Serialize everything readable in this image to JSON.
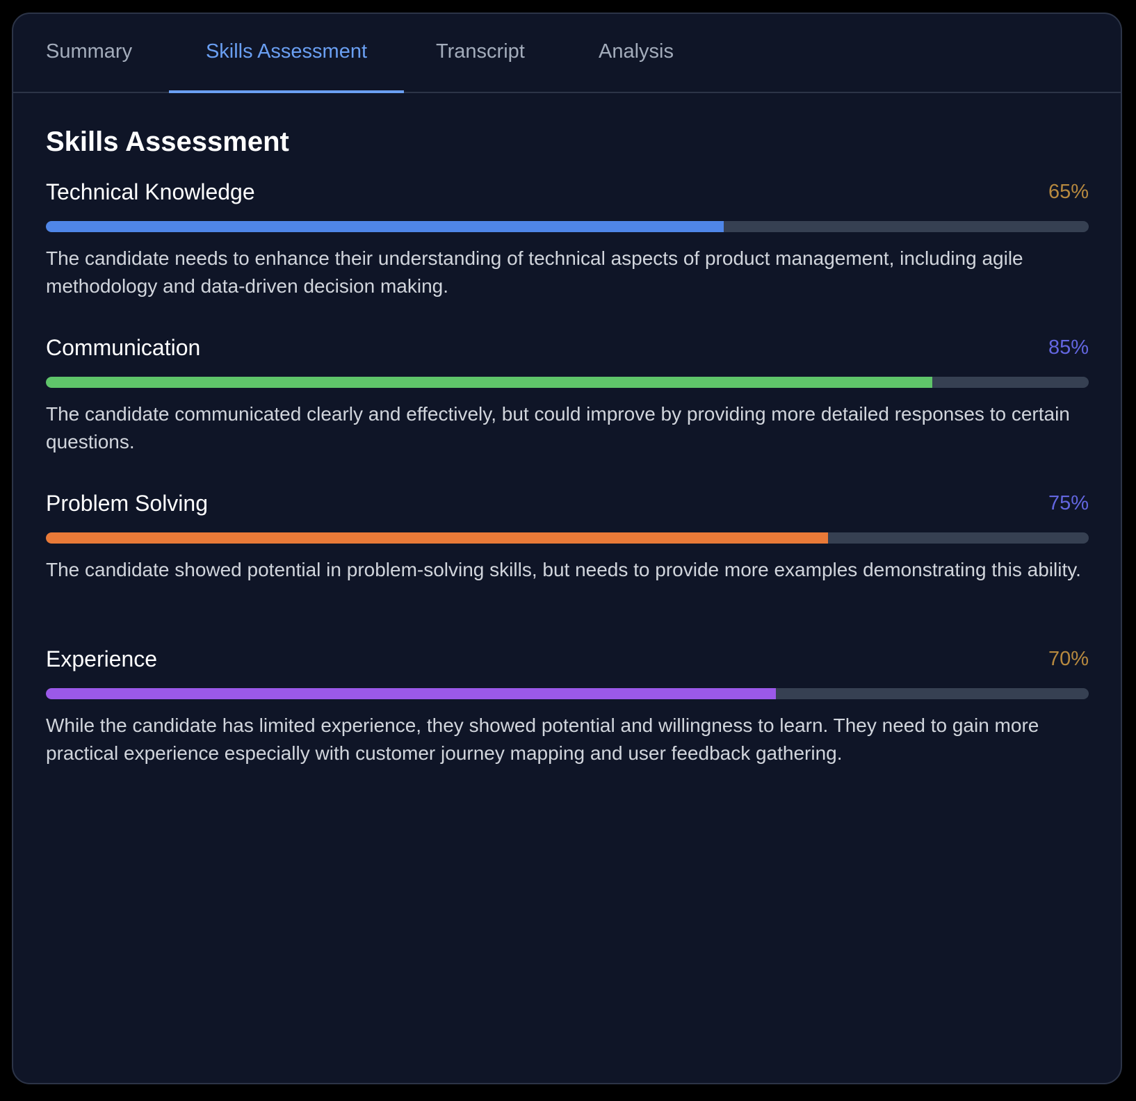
{
  "tabs": [
    {
      "label": "Summary",
      "active": false
    },
    {
      "label": "Skills Assessment",
      "active": true
    },
    {
      "label": "Transcript",
      "active": false
    },
    {
      "label": "Analysis",
      "active": false
    }
  ],
  "colors": {
    "accent": "#6a9ff2",
    "track": "#364052"
  },
  "main": {
    "title": "Skills Assessment",
    "skills": [
      {
        "name": "Technical Knowledge",
        "score": "65%",
        "level": 65,
        "bar_color": "#4f86e8",
        "score_color": "#b7893f",
        "description": "The candidate needs to enhance their understanding of technical aspects of product management, including agile methodology and data-driven decision making."
      },
      {
        "name": "Communication",
        "score": "85%",
        "level": 85,
        "bar_color": "#5fc56a",
        "score_color": "#6366e0",
        "description": "The candidate communicated clearly and effectively, but could improve by providing more detailed responses to certain questions."
      },
      {
        "name": "Problem Solving",
        "score": "75%",
        "level": 75,
        "bar_color": "#e97a38",
        "score_color": "#6366e0",
        "description": "The candidate showed potential in problem-solving skills, but needs to provide more examples demonstrating this ability."
      },
      {
        "name": "Experience",
        "score": "70%",
        "level": 70,
        "bar_color": "#9b59e8",
        "score_color": "#b7893f",
        "description": "While the candidate has limited experience, they showed potential and willingness to learn. They need to gain more practical experience especially with customer journey mapping and user feedback gathering."
      }
    ]
  }
}
